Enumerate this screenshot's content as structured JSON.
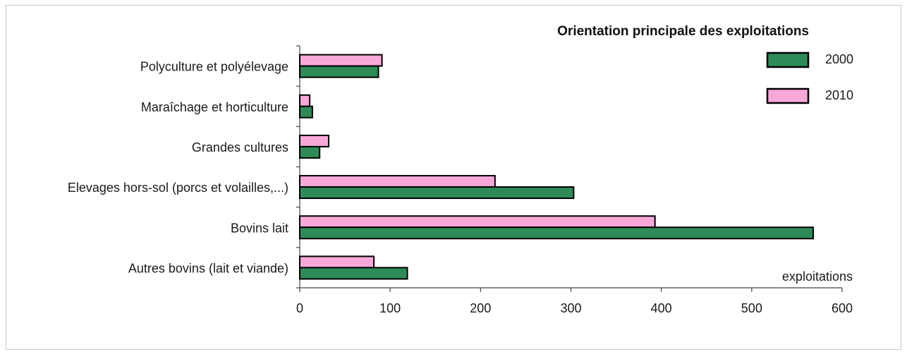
{
  "chart_data": {
    "type": "bar",
    "orientation": "horizontal",
    "title": "Orientation principale des exploitations",
    "xlabel": "exploitations",
    "ylabel": "",
    "xlim": [
      0,
      600
    ],
    "x_ticks": [
      0,
      100,
      200,
      300,
      400,
      500,
      600
    ],
    "categories": [
      "Polyculture et polyélevage",
      "Maraîchage et horticulture",
      "Grandes cultures",
      "Elevages hors-sol (porcs et volailles,...)",
      "Bovins lait",
      "Autres bovins (lait et viande)"
    ],
    "series": [
      {
        "name": "2000",
        "color": "#2e8b57",
        "values": [
          87,
          14,
          22,
          303,
          568,
          119
        ]
      },
      {
        "name": "2010",
        "color": "#f7a8d8",
        "values": [
          91,
          11,
          32,
          216,
          393,
          82
        ]
      }
    ],
    "legend_position": "top-right",
    "grid": false
  }
}
